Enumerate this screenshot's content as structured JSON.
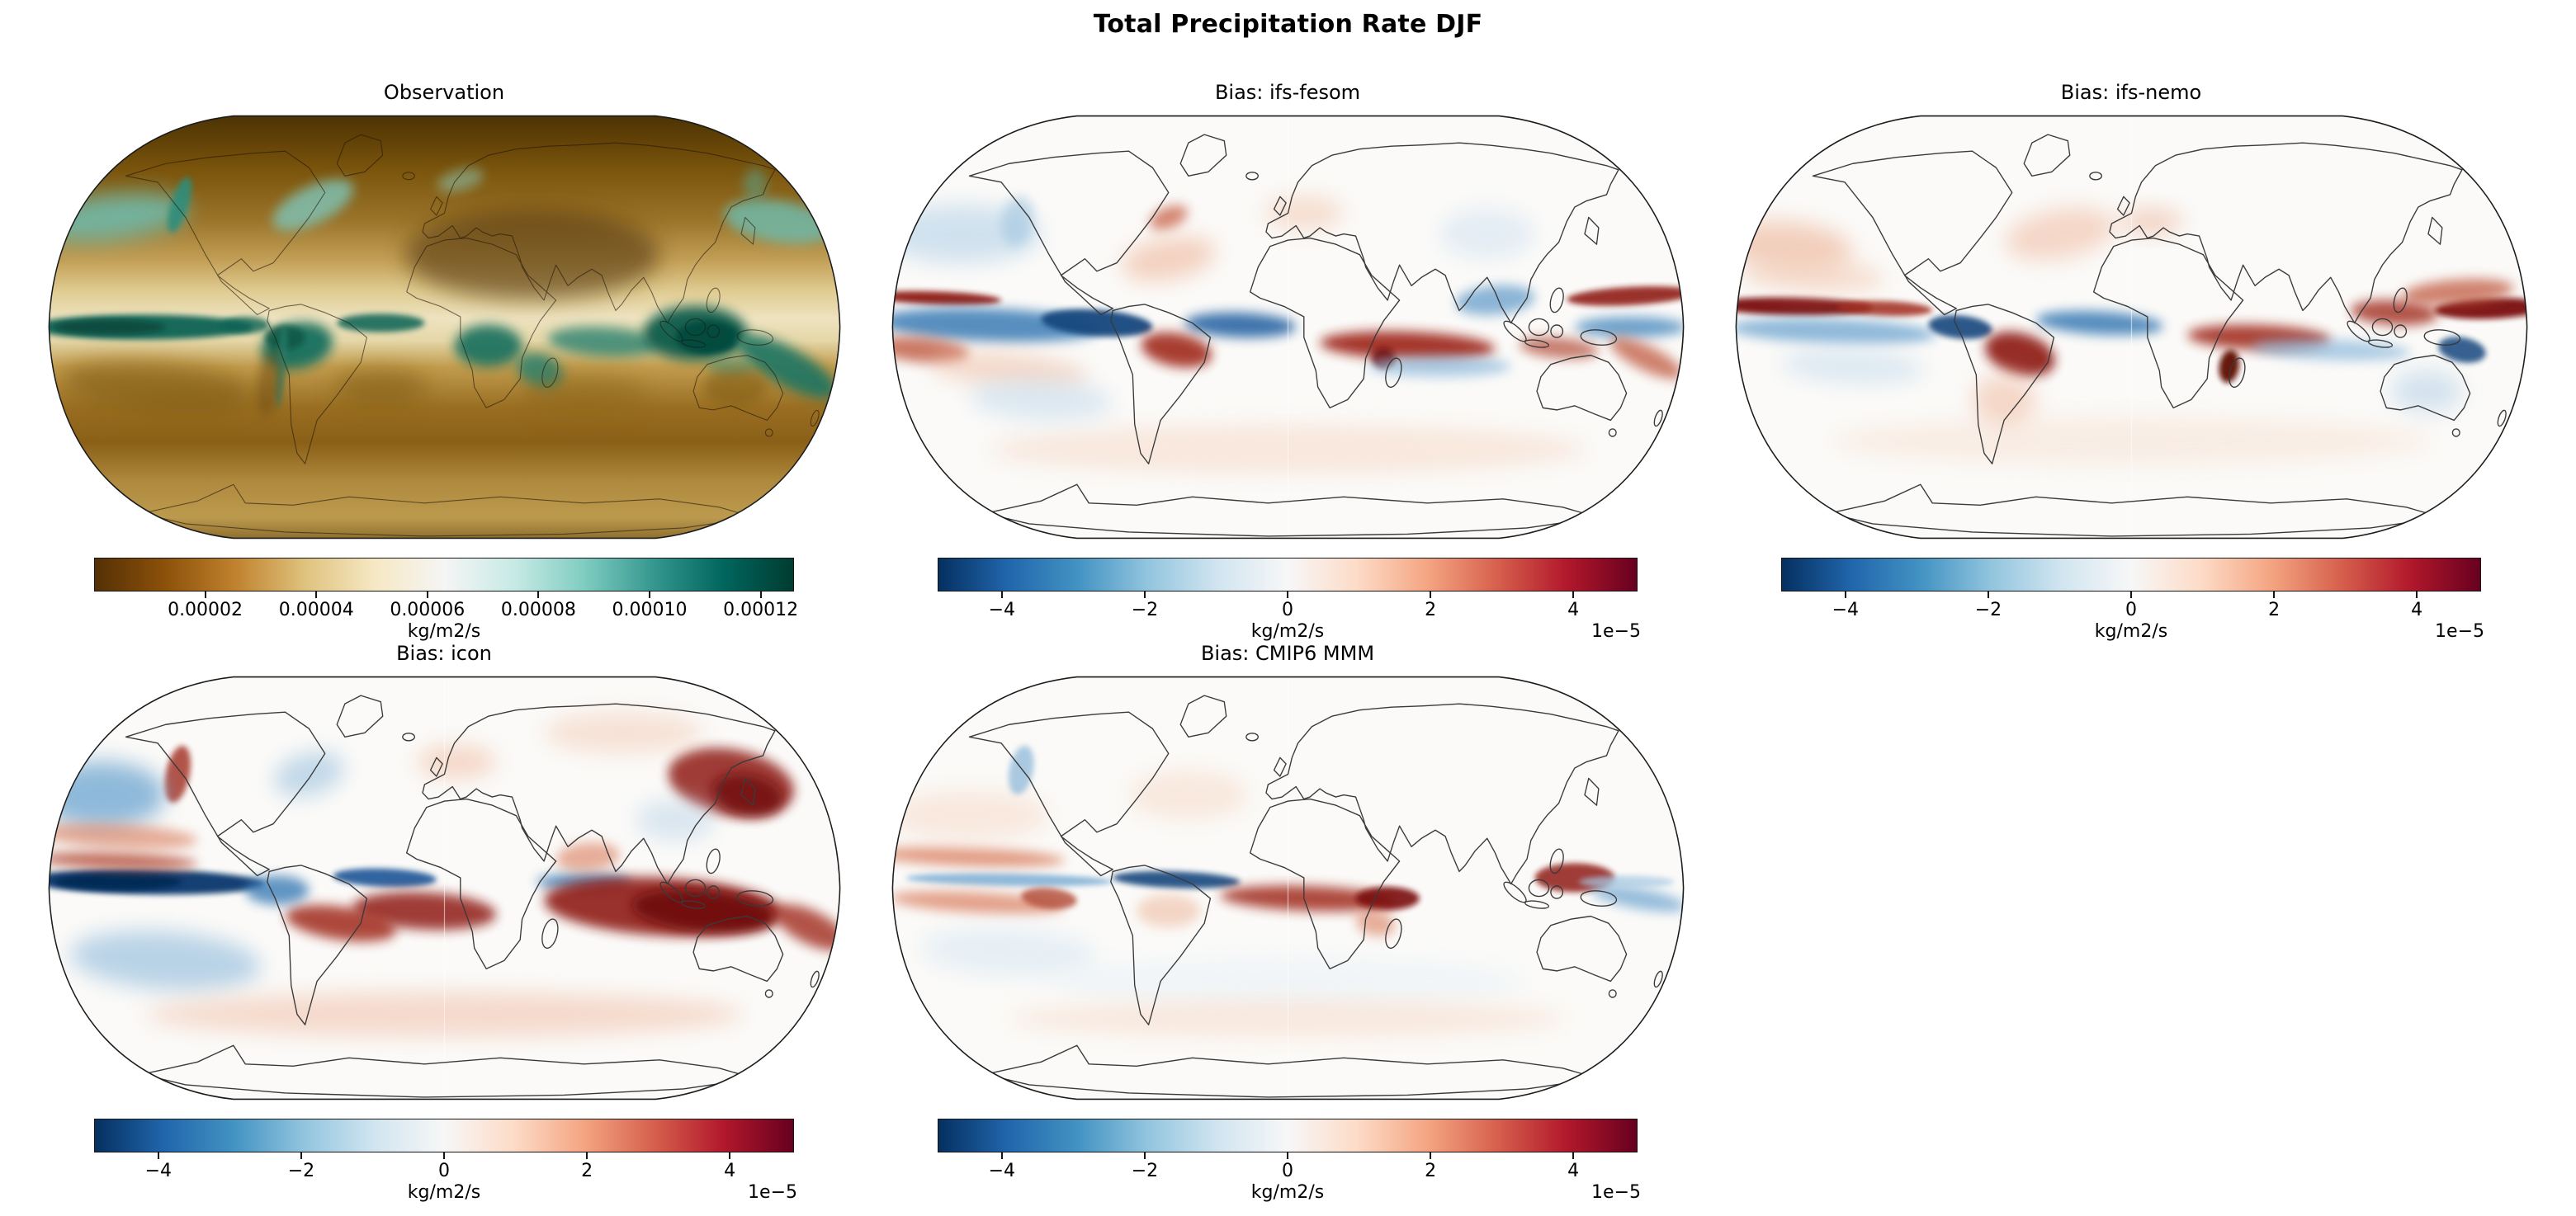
{
  "figure": {
    "title": "Total Precipitation Rate DJF",
    "background_color": "#ffffff",
    "map_outline_color": "#1b1b1b"
  },
  "panels": [
    {
      "id": "observation",
      "title": "Observation",
      "colormap": "BrBG",
      "colorbar": {
        "ticks": [
          2e-05,
          4e-05,
          6e-05,
          8e-05,
          0.0001,
          0.00012
        ],
        "tick_labels": [
          "0.00002",
          "0.00004",
          "0.00006",
          "0.00008",
          "0.00010",
          "0.00012"
        ],
        "vmin": 0,
        "vmax": 0.000126,
        "unit_label": "kg/m2/s",
        "exponent_label": "",
        "gradient_stops": [
          "#543005",
          "#8c510a",
          "#bf812d",
          "#dfc27d",
          "#f6e8c3",
          "#f5f5f5",
          "#c7eae5",
          "#80cdc1",
          "#35978f",
          "#01665e",
          "#003c30"
        ]
      }
    },
    {
      "id": "bias-ifs-fesom",
      "title": "Bias: ifs-fesom",
      "colormap": "RdBu_r",
      "colorbar": {
        "ticks": [
          -4e-05,
          -2e-05,
          0,
          2e-05,
          4e-05
        ],
        "tick_labels": [
          "−4",
          "−2",
          "0",
          "2",
          "4"
        ],
        "vmin": -4.9e-05,
        "vmax": 4.9e-05,
        "unit_label": "kg/m2/s",
        "exponent_label": "1e−5",
        "gradient_stops": [
          "#053061",
          "#2166ac",
          "#4393c3",
          "#92c5de",
          "#d1e5f0",
          "#f7f7f7",
          "#fddbc7",
          "#f4a582",
          "#d6604d",
          "#b2182b",
          "#67001f"
        ]
      }
    },
    {
      "id": "bias-ifs-nemo",
      "title": "Bias: ifs-nemo",
      "colormap": "RdBu_r",
      "colorbar": {
        "ticks": [
          -4e-05,
          -2e-05,
          0,
          2e-05,
          4e-05
        ],
        "tick_labels": [
          "−4",
          "−2",
          "0",
          "2",
          "4"
        ],
        "vmin": -4.9e-05,
        "vmax": 4.9e-05,
        "unit_label": "kg/m2/s",
        "exponent_label": "1e−5",
        "gradient_stops": [
          "#053061",
          "#2166ac",
          "#4393c3",
          "#92c5de",
          "#d1e5f0",
          "#f7f7f7",
          "#fddbc7",
          "#f4a582",
          "#d6604d",
          "#b2182b",
          "#67001f"
        ]
      }
    },
    {
      "id": "bias-icon",
      "title": "Bias: icon",
      "colormap": "RdBu_r",
      "colorbar": {
        "ticks": [
          -4e-05,
          -2e-05,
          0,
          2e-05,
          4e-05
        ],
        "tick_labels": [
          "−4",
          "−2",
          "0",
          "2",
          "4"
        ],
        "vmin": -4.9e-05,
        "vmax": 4.9e-05,
        "unit_label": "kg/m2/s",
        "exponent_label": "1e−5",
        "gradient_stops": [
          "#053061",
          "#2166ac",
          "#4393c3",
          "#92c5de",
          "#d1e5f0",
          "#f7f7f7",
          "#fddbc7",
          "#f4a582",
          "#d6604d",
          "#b2182b",
          "#67001f"
        ]
      }
    },
    {
      "id": "bias-cmip6-mmm",
      "title": "Bias: CMIP6 MMM",
      "colormap": "RdBu_r",
      "colorbar": {
        "ticks": [
          -4e-05,
          -2e-05,
          0,
          2e-05,
          4e-05
        ],
        "tick_labels": [
          "−4",
          "−2",
          "0",
          "2",
          "4"
        ],
        "vmin": -4.9e-05,
        "vmax": 4.9e-05,
        "unit_label": "kg/m2/s",
        "exponent_label": "1e−5",
        "gradient_stops": [
          "#053061",
          "#2166ac",
          "#4393c3",
          "#92c5de",
          "#d1e5f0",
          "#f7f7f7",
          "#fddbc7",
          "#f4a582",
          "#d6604d",
          "#b2182b",
          "#67001f"
        ]
      }
    }
  ],
  "chart_data": [
    {
      "type": "heatmap",
      "title": "Observation",
      "suptitle": "Total Precipitation Rate DJF",
      "projection": "Robinson world map",
      "units": "kg/m2/s",
      "colormap": "BrBG",
      "colorbar_ticks": [
        2e-05,
        4e-05,
        6e-05,
        8e-05,
        0.0001,
        0.00012
      ],
      "colorbar_range": [
        0,
        0.000126
      ],
      "features": "High precipitation (dark teal) along the ITCZ across the Pacific and Atlantic, over the Amazon, Congo basin, Maritime Continent, SPCZ and midlatitude ocean storm tracks; low precipitation (dark brown) over the Sahara, interior Eurasia, subtropical highs and polar regions."
    },
    {
      "type": "heatmap",
      "title": "Bias: ifs-fesom",
      "projection": "Robinson world map",
      "units": "kg/m2/s",
      "colormap": "RdBu_r",
      "colorbar_ticks": [
        -4e-05,
        -2e-05,
        0,
        2e-05,
        4e-05
      ],
      "colorbar_range": [
        -4.9e-05,
        4.9e-05
      ],
      "scale_label": "1e−5",
      "features": "Narrow wet (red) band just north of the equator in the Pacific; broad dry (blue) band south of the equator across the Pacific and Atlantic with a dark core near the western Amazon; wet bias over the southern Indian Ocean, Madagascar and southeastern Brazil; weak biases at high latitudes."
    },
    {
      "type": "heatmap",
      "title": "Bias: ifs-nemo",
      "projection": "Robinson world map",
      "units": "kg/m2/s",
      "colormap": "RdBu_r",
      "colorbar_ticks": [
        -4e-05,
        -2e-05,
        0,
        2e-05,
        4e-05
      ],
      "colorbar_range": [
        -4.9e-05,
        4.9e-05
      ],
      "scale_label": "1e−5",
      "features": "Strong wet (red) band along the equatorial Pacific; wet bias over Brazil, Madagascar, the southern Indian Ocean and the Maritime Continent; dry (blue) band south of the equatorial Pacific band, over the eastern equatorial Atlantic and northeast of Australia."
    },
    {
      "type": "heatmap",
      "title": "Bias: icon",
      "projection": "Robinson world map",
      "units": "kg/m2/s",
      "colormap": "RdBu_r",
      "colorbar_ticks": [
        -4e-05,
        -2e-05,
        0,
        2e-05,
        4e-05
      ],
      "colorbar_range": [
        -4.9e-05,
        4.9e-05
      ],
      "scale_label": "1e−5",
      "features": "Strong dry (dark blue) band along the equatorial Pacific and Atlantic; large wet (dark red) biases over the Indian Ocean, Maritime Continent, Australia, southern Africa, South Atlantic and the northwest Pacific near Japan; dry bias in the northeast Pacific."
    },
    {
      "type": "heatmap",
      "title": "Bias: CMIP6 MMM",
      "projection": "Robinson world map",
      "units": "kg/m2/s",
      "colormap": "RdBu_r",
      "colorbar_ticks": [
        -4e-05,
        -2e-05,
        0,
        2e-05,
        4e-05
      ],
      "colorbar_range": [
        -4.9e-05,
        4.9e-05
      ],
      "scale_label": "1e−5",
      "features": "Double-ITCZ pattern with wet (red) bands flanking a dry (blue) equatorial band in the Pacific; dry band in the equatorial Atlantic; strong wet bias over the western Indian Ocean and Maritime Continent; weak speckled biases elsewhere."
    }
  ]
}
